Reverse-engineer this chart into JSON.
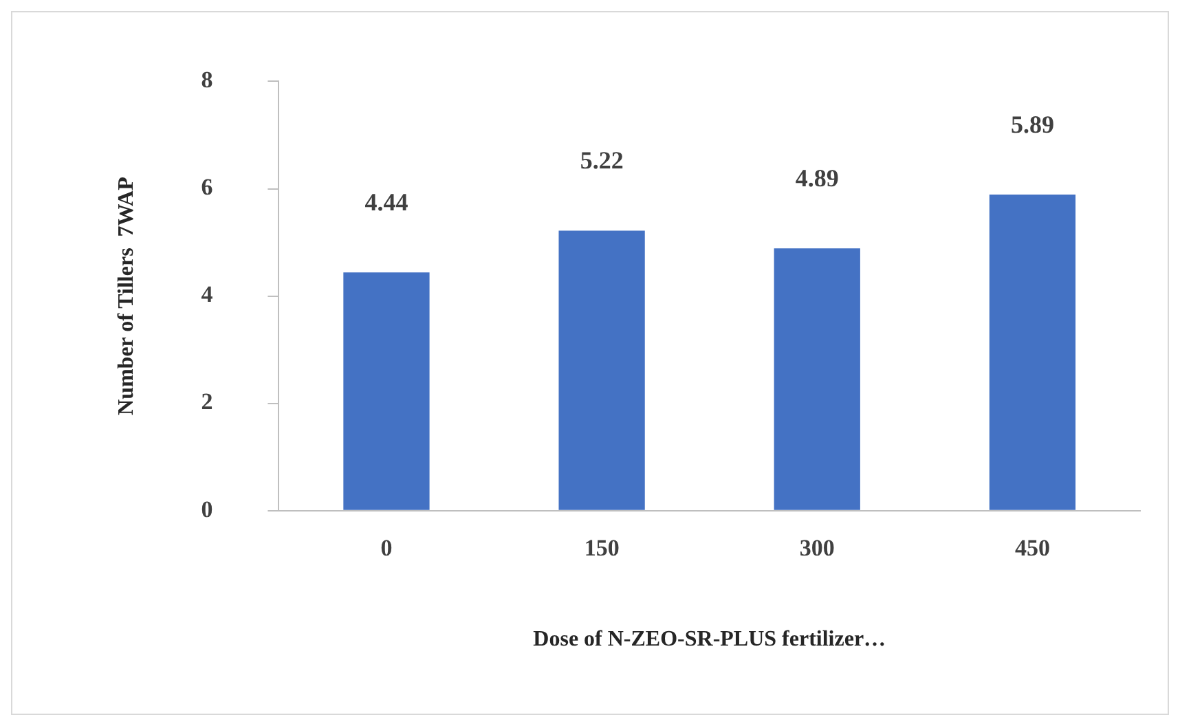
{
  "chart_data": {
    "type": "bar",
    "xlabel": "Dose of N-ZEO-SR-PLUS fertilizer…",
    "ylabel": "Number of Tillers  7WAP",
    "categories": [
      "0",
      "150",
      "300",
      "450"
    ],
    "series": [
      {
        "color": "#4472c4",
        "values": [
          4.44,
          5.22,
          4.89,
          5.89
        ]
      }
    ],
    "ylim": [
      0,
      8
    ],
    "yticks": [
      0,
      2,
      4,
      6,
      8
    ],
    "grid": false,
    "legend": false,
    "data_labels": true
  }
}
